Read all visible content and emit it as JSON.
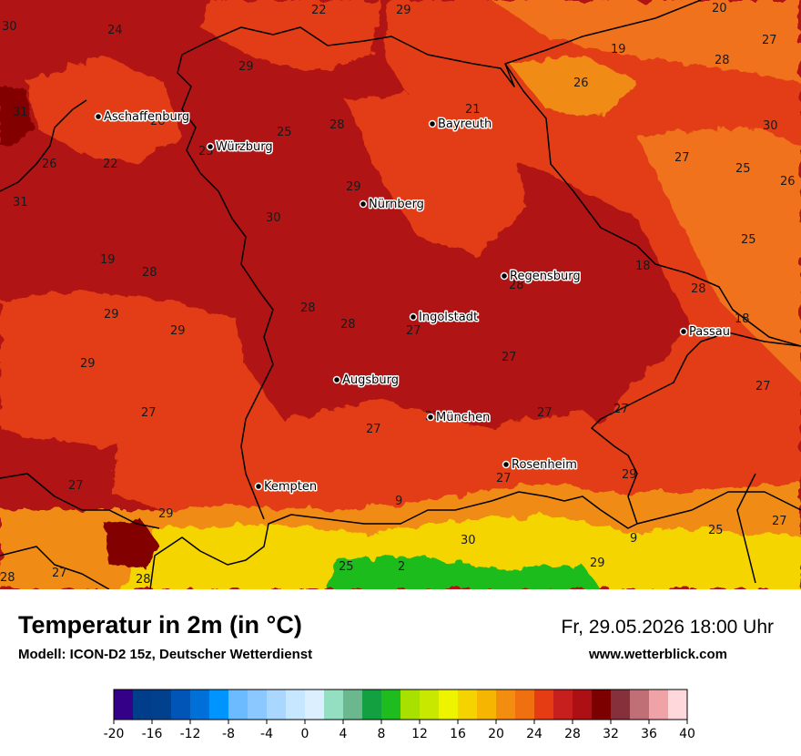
{
  "header": {
    "title": "Temperatur in 2m (in °C)",
    "model": "Modell: ICON-D2 15z, Deutscher Wetterdienst",
    "datetime": "Fr, 29.05.2026 18:00 Uhr",
    "website": "www.wetterblick.com"
  },
  "cities": [
    {
      "name": "Aschaffenburg"
    },
    {
      "name": "Würzburg"
    },
    {
      "name": "Bayreuth"
    },
    {
      "name": "Nürnberg"
    },
    {
      "name": "Regensburg"
    },
    {
      "name": "Ingolstadt"
    },
    {
      "name": "Passau"
    },
    {
      "name": "Augsburg"
    },
    {
      "name": "München"
    },
    {
      "name": "Rosenheim"
    },
    {
      "name": "Kempten"
    }
  ],
  "value_labels": [
    "30",
    "24",
    "22",
    "29",
    "20",
    "27",
    "19",
    "28",
    "26",
    "31",
    "29",
    "21",
    "28",
    "25",
    "26",
    "25",
    "30",
    "22",
    "26",
    "27",
    "29",
    "31",
    "25",
    "26",
    "30",
    "25",
    "19",
    "28",
    "18",
    "28",
    "28",
    "18",
    "29",
    "29",
    "28",
    "28",
    "27",
    "29",
    "27",
    "27",
    "27",
    "27",
    "27",
    "27",
    "27",
    "29",
    "27",
    "29",
    "27",
    "9",
    "9",
    "25",
    "27",
    "30",
    "29",
    "28",
    "27",
    "28",
    "25",
    "2"
  ],
  "legend": {
    "ticks": [
      "-20",
      "-16",
      "-12",
      "-8",
      "-4",
      "0",
      "4",
      "8",
      "12",
      "16",
      "20",
      "24",
      "28",
      "32",
      "36",
      "40"
    ],
    "colors": [
      "#350088",
      "#003d8a",
      "#00408c",
      "#0055b6",
      "#0070d9",
      "#0094ff",
      "#6cbaff",
      "#8ac8ff",
      "#a9d7ff",
      "#c7e6ff",
      "#dcefff",
      "#94dfc2",
      "#6bb88e",
      "#13a041",
      "#1fbc1f",
      "#a8e100",
      "#c8e800",
      "#eef400",
      "#f4d300",
      "#f5b500",
      "#f38d0f",
      "#f07010",
      "#e53c13",
      "#c71e1e",
      "#ac1014",
      "#7d0000",
      "#86303c",
      "#c16f76",
      "#f0a3a7",
      "#ffd8dc"
    ]
  },
  "map_colors": {
    "dark_red": "#b01414",
    "red": "#c41c16",
    "red_orange": "#e23e12",
    "orange": "#f0721a",
    "dark_orange": "#f08c13",
    "yellow": "#f5d500",
    "green": "#1fbc1f",
    "deep_red": "#820000"
  }
}
